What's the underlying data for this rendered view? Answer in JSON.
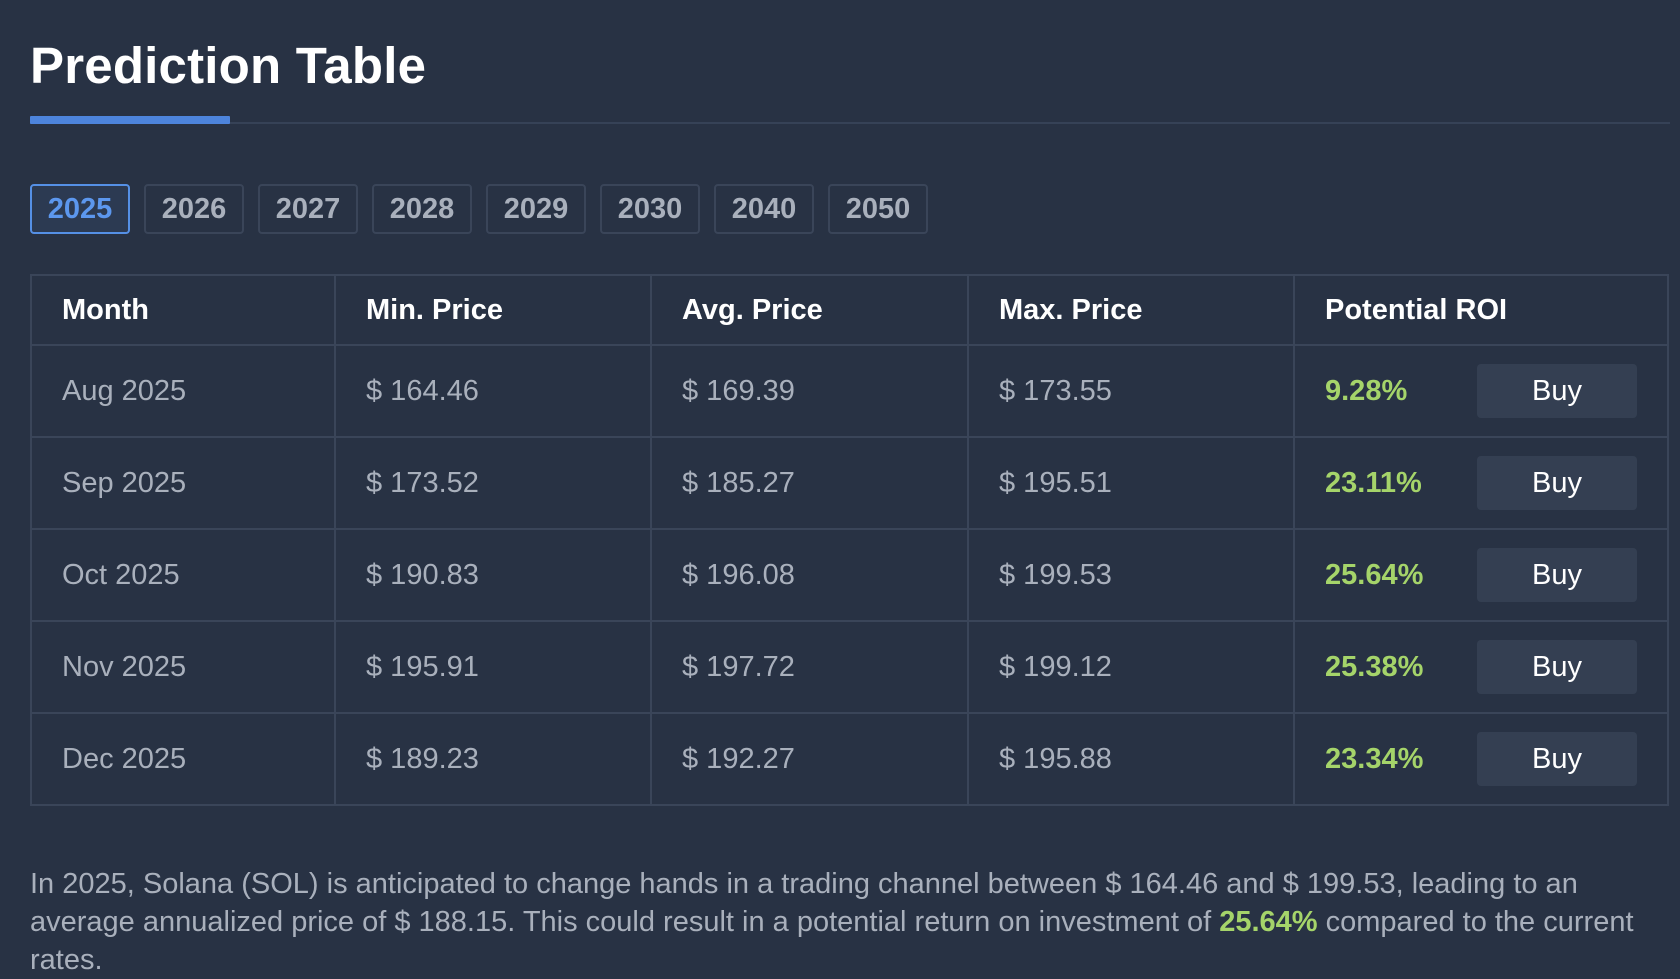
{
  "header": {
    "title": "Prediction Table"
  },
  "year_tabs": [
    "2025",
    "2026",
    "2027",
    "2028",
    "2029",
    "2030",
    "2040",
    "2050"
  ],
  "selected_year": "2025",
  "table": {
    "columns": [
      "Month",
      "Min. Price",
      "Avg. Price",
      "Max. Price",
      "Potential ROI"
    ],
    "rows": [
      {
        "month": "Aug 2025",
        "min": "$ 164.46",
        "avg": "$ 169.39",
        "max": "$ 173.55",
        "roi": "9.28%",
        "action": "Buy"
      },
      {
        "month": "Sep 2025",
        "min": "$ 173.52",
        "avg": "$ 185.27",
        "max": "$ 195.51",
        "roi": "23.11%",
        "action": "Buy"
      },
      {
        "month": "Oct 2025",
        "min": "$ 190.83",
        "avg": "$ 196.08",
        "max": "$ 199.53",
        "roi": "25.64%",
        "action": "Buy"
      },
      {
        "month": "Nov 2025",
        "min": "$ 195.91",
        "avg": "$ 197.72",
        "max": "$ 199.12",
        "roi": "25.38%",
        "action": "Buy"
      },
      {
        "month": "Dec 2025",
        "min": "$ 189.23",
        "avg": "$ 192.27",
        "max": "$ 195.88",
        "roi": "23.34%",
        "action": "Buy"
      }
    ]
  },
  "summary": {
    "before": "In 2025, Solana (SOL) is anticipated to change hands in a trading channel between $ 164.46 and $ 199.53, leading to an average annualized price of $ 188.15. This could result in a potential return on investment of ",
    "highlight": "25.64%",
    "after": " compared to the current rates."
  },
  "colors": {
    "background": "#283244",
    "accent": "#4d84dc",
    "roi_green": "#a5d46a",
    "muted_text": "#a9b0bc",
    "border": "#3a4559",
    "button_bg": "#343f52"
  }
}
